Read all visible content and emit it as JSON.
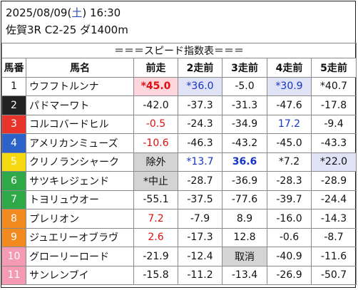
{
  "header": {
    "date": "2025/08/09",
    "weekday_open": "(",
    "weekday": "土",
    "weekday_close": ")",
    "time": "16:30",
    "race": "佐賀3R C2-25 ダ1400m"
  },
  "table_title": "＝＝＝スピード指数表＝＝＝",
  "columns": [
    "馬番",
    "馬名",
    "前走",
    "2走前",
    "3走前",
    "4走前",
    "5走前"
  ],
  "colors": {
    "gate1": "#ffffff",
    "gate2": "#222222",
    "gate3": "#e8342b",
    "gate4": "#2d63c8",
    "gate5": "#f5d810",
    "gate6": "#2fa84a",
    "gate7": "#f28a1d",
    "gate8": "#f49ab3",
    "value_red": "#e01010",
    "value_blue": "#1533c8",
    "highlight_pink": "#ffd6dd",
    "highlight_lavender": "#dfe3f5",
    "highlight_gray": "#d4d4d4"
  },
  "rows": [
    {
      "num": "1",
      "name": "ウフフトルンナ",
      "vals": [
        "*45.0",
        "*36.0",
        "-5.0",
        "*30.9",
        "*40.7"
      ]
    },
    {
      "num": "2",
      "name": "パドマーワト",
      "vals": [
        "-42.0",
        "-37.3",
        "-31.3",
        "-47.6",
        "-17.8"
      ]
    },
    {
      "num": "3",
      "name": "コルコバードヒル",
      "vals": [
        "-0.5",
        "-24.3",
        "-34.9",
        "17.2",
        "-9.4"
      ]
    },
    {
      "num": "4",
      "name": "アメリカンミューズ",
      "vals": [
        "-10.6",
        "-46.3",
        "-43.2",
        "-45.0",
        "-43.3"
      ]
    },
    {
      "num": "5",
      "name": "クリノランシャーク",
      "vals": [
        "除外",
        "*13.7",
        "36.6",
        "*7.2",
        "*22.0"
      ]
    },
    {
      "num": "6",
      "name": "サツキレジェンド",
      "vals": [
        "*中止",
        "-28.7",
        "-36.9",
        "-28.3",
        "-28.9"
      ]
    },
    {
      "num": "7",
      "name": "トヨリュウオー",
      "vals": [
        "-55.1",
        "-37.5",
        "-77.6",
        "-39.7",
        "-24.4"
      ]
    },
    {
      "num": "8",
      "name": "プレリオン",
      "vals": [
        "7.2",
        "-7.9",
        "8.9",
        "-16.0",
        "-14.3"
      ]
    },
    {
      "num": "9",
      "name": "ジュエリーオブラヴ",
      "vals": [
        "2.6",
        "-17.3",
        "12.8",
        "-0.6",
        "-8.7"
      ]
    },
    {
      "num": "10",
      "name": "グローリーロード",
      "vals": [
        "-21.9",
        "-12.4",
        "取消",
        "-40.9",
        "-11.6"
      ]
    },
    {
      "num": "11",
      "name": "サンレンブイ",
      "vals": [
        "-15.8",
        "-11.2",
        "-13.4",
        "-26.9",
        "-50.7"
      ]
    }
  ]
}
